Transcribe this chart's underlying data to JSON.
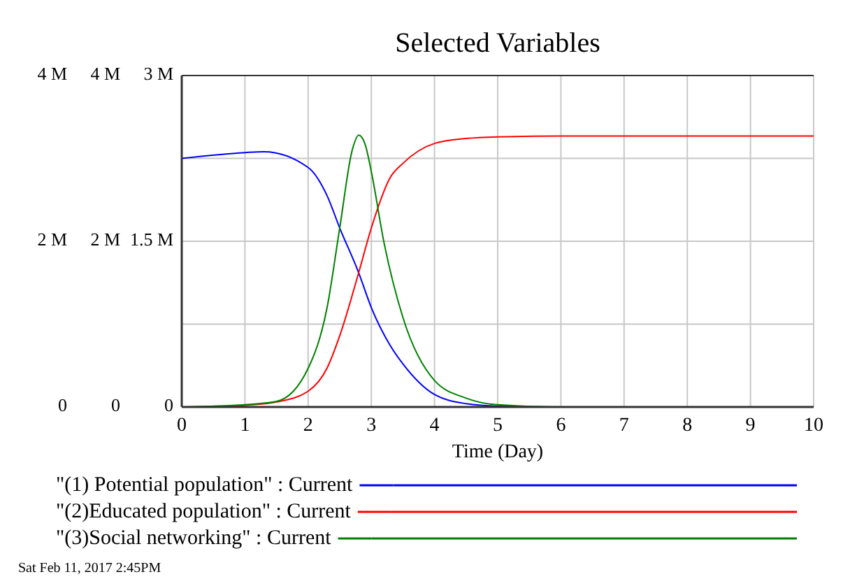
{
  "chart_data": {
    "type": "line",
    "title": "Selected Variables",
    "xlabel": "Time (Day)",
    "annotations": [
      "Sat Feb 11, 2017 2:45PM"
    ],
    "xlim": [
      0,
      10
    ],
    "xticks": [
      0,
      1,
      2,
      3,
      4,
      5,
      6,
      7,
      8,
      9,
      10
    ],
    "ylim": [
      0,
      4000000
    ],
    "yticks": [
      {
        "value": 0,
        "label": "0"
      },
      {
        "value": 1000000,
        "label": null
      },
      {
        "value": 2000000,
        "label": "2 M"
      },
      {
        "value": 3000000,
        "label": null
      },
      {
        "value": 4000000,
        "label": "4 M"
      }
    ],
    "y2lim": [
      0,
      4000000
    ],
    "y2ticks": [
      {
        "value": 0,
        "label": "0"
      },
      {
        "value": 2000000,
        "label": "2 M"
      },
      {
        "value": 4000000,
        "label": "4 M"
      }
    ],
    "y3lim": [
      0,
      3000000
    ],
    "y3ticks": [
      {
        "value": 0,
        "label": "0"
      },
      {
        "value": 1500000,
        "label": "1.5 M"
      },
      {
        "value": 3000000,
        "label": "3 M"
      }
    ],
    "grid": true,
    "legend": "bottom",
    "marker": "none",
    "line_style": "solid",
    "series": [
      {
        "name": "\"(1) Potential population\" : Current",
        "color": "#0000ff",
        "x": [
          0,
          1,
          1.3,
          2,
          2.3,
          2.5,
          2.8,
          3,
          3.3,
          3.5,
          4,
          4.5,
          5,
          6,
          10
        ],
        "values": [
          3000000,
          3070000,
          3080000,
          2890000,
          2550000,
          2160000,
          1620000,
          1200000,
          740000,
          520000,
          150000,
          40000,
          10000,
          0,
          0
        ]
      },
      {
        "name": "\"(2)Educated population\" : Current",
        "color": "#ff0000",
        "axis": "y2",
        "x": [
          0,
          1,
          1.5,
          2,
          2.3,
          2.5,
          2.8,
          3,
          3.3,
          3.5,
          4,
          4.5,
          5,
          6,
          10
        ],
        "values": [
          0,
          20000,
          60000,
          190000,
          470000,
          860000,
          1620000,
          2160000,
          2770000,
          2940000,
          3180000,
          3240000,
          3260000,
          3270000,
          3270000
        ]
      },
      {
        "name": "\"(3)Social networking\" : Current",
        "color": "#008000",
        "axis": "y3",
        "x": [
          0,
          1,
          1.5,
          2,
          2.3,
          2.5,
          2.7,
          2.8,
          2.9,
          3,
          3.2,
          3.5,
          4,
          4.5,
          5,
          6,
          10
        ],
        "values": [
          0,
          20000,
          50000,
          350000,
          900000,
          1620000,
          2330000,
          2460000,
          2380000,
          2130000,
          1490000,
          810000,
          240000,
          80000,
          20000,
          0,
          0
        ]
      }
    ]
  }
}
